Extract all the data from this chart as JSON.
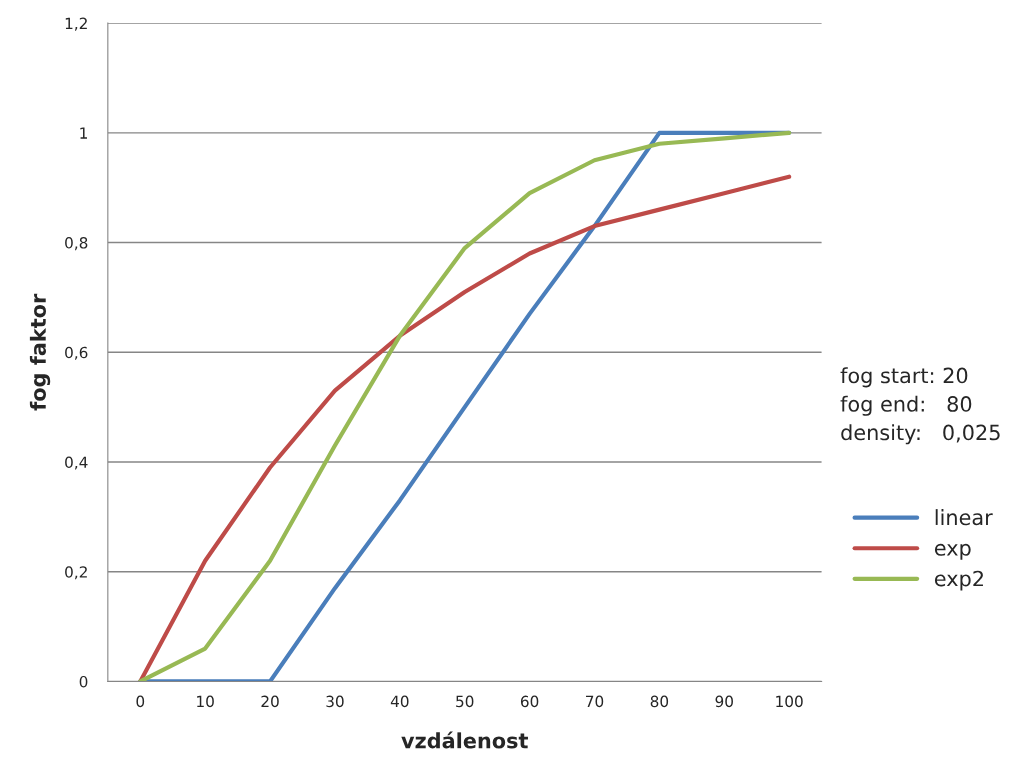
{
  "chart_data": {
    "type": "line",
    "xlabel": "vzdálenost",
    "ylabel": "fog faktor",
    "categories": [
      "0",
      "10",
      "20",
      "30",
      "40",
      "50",
      "60",
      "70",
      "80",
      "90",
      "100"
    ],
    "series": [
      {
        "name": "linear",
        "color": "#4a7ebb",
        "values": [
          0,
          0,
          0,
          0.17,
          0.33,
          0.5,
          0.67,
          0.83,
          1,
          1,
          1
        ]
      },
      {
        "name": "exp",
        "color": "#be4b48",
        "values": [
          0,
          0.22,
          0.39,
          0.53,
          0.63,
          0.71,
          0.78,
          0.83,
          0.86,
          0.89,
          0.92
        ]
      },
      {
        "name": "exp2",
        "color": "#98b954",
        "values": [
          0,
          0.06,
          0.22,
          0.43,
          0.63,
          0.79,
          0.89,
          0.95,
          0.98,
          0.99,
          1.0
        ]
      }
    ],
    "ylim": [
      0,
      1.2
    ],
    "yticks": [
      {
        "value": 0,
        "label": "0"
      },
      {
        "value": 0.2,
        "label": "0,2"
      },
      {
        "value": 0.4,
        "label": "0,4"
      },
      {
        "value": 0.6,
        "label": "0,6"
      },
      {
        "value": 0.8,
        "label": "0,8"
      },
      {
        "value": 1,
        "label": "1"
      },
      {
        "value": 1.2,
        "label": "1,2"
      }
    ],
    "grid": "y",
    "legend": "right",
    "marker": "none",
    "line_style": "solid",
    "annotations": [
      "fog start: 20",
      "fog end:   80",
      "density:   0,025"
    ]
  }
}
